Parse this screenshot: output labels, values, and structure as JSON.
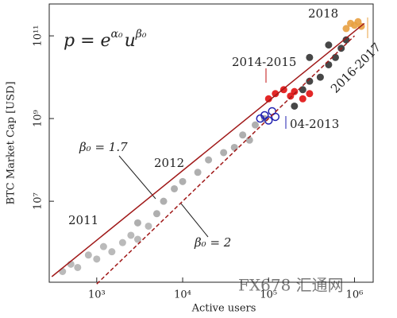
{
  "chart_data": {
    "type": "scatter",
    "log_x": true,
    "log_y": true,
    "x_label": "Active users",
    "y_label": "BTC Market Cap [USD]",
    "formula": {
      "base": "p = e",
      "exp1": "α₀",
      "mid": "u",
      "exp2": "β₀"
    },
    "xlim": [
      280,
      1650000
    ],
    "ylim": [
      110000,
      590000000000
    ],
    "xticks": [
      {
        "value": 1000,
        "label": "10³"
      },
      {
        "value": 10000,
        "label": "10⁴"
      },
      {
        "value": 100000,
        "label": "10⁵"
      },
      {
        "value": 1000000,
        "label": "10⁶"
      }
    ],
    "yticks": [
      {
        "value": 10000000,
        "label": "10⁷"
      },
      {
        "value": 1000000000,
        "label": "10⁹"
      },
      {
        "value": 100000000000,
        "label": "10¹¹"
      }
    ],
    "series": [
      {
        "name": "2011",
        "color": "#b3b3b3",
        "marker": "filled",
        "x": [
          400,
          500,
          600,
          800,
          1000,
          1200,
          1500,
          2000,
          2500,
          3000,
          4000
        ],
        "y": [
          200000,
          300000,
          250000,
          500000,
          400000,
          800000,
          600000,
          1000000,
          1500000,
          1200000,
          2500000
        ]
      },
      {
        "name": "2012",
        "color": "#a6a6a6",
        "marker": "filled",
        "x": [
          3000,
          5000,
          6000,
          8000,
          10000,
          15000,
          20000,
          30000,
          40000,
          50000,
          60000,
          70000,
          90000
        ],
        "y": [
          3000000,
          5000000,
          10000000,
          20000000,
          30000000,
          50000000,
          100000000,
          150000000,
          200000000,
          400000000,
          300000000,
          700000000,
          1000000000
        ]
      },
      {
        "name": "04-2013",
        "color": "#2020b0",
        "marker": "open",
        "x": [
          80000,
          90000,
          100000,
          110000,
          120000
        ],
        "y": [
          1000000000,
          1200000000,
          900000000,
          1500000000,
          1100000000
        ]
      },
      {
        "name": "2014-2015",
        "color": "#e01010",
        "marker": "filled",
        "x": [
          100000,
          120000,
          150000,
          180000,
          200000,
          250000,
          300000
        ],
        "y": [
          3000000000,
          4000000000,
          5000000000,
          3500000000,
          4500000000,
          3000000000,
          4000000000
        ]
      },
      {
        "name": "2016-2017",
        "color": "#333333",
        "marker": "filled",
        "x": [
          200000,
          250000,
          300000,
          400000,
          500000,
          600000,
          700000,
          800000,
          300000,
          500000
        ],
        "y": [
          2000000000,
          5000000000,
          8000000000,
          10000000000,
          20000000000,
          30000000000,
          50000000000,
          80000000000,
          30000000000,
          60000000000
        ]
      },
      {
        "name": "2018",
        "color": "#e8a040",
        "marker": "filled",
        "x": [
          800000,
          900000,
          1000000,
          1100000,
          1200000
        ],
        "y": [
          150000000000,
          200000000000,
          180000000000,
          220000000000,
          170000000000
        ]
      }
    ],
    "fits": [
      {
        "name": "β₀ = 1.7",
        "color": "#a01818",
        "dash": false,
        "x": [
          300,
          1300000
        ],
        "y": [
          150000,
          200000000000
        ]
      },
      {
        "name": "β₀ = 2",
        "color": "#a01818",
        "dash": true,
        "x": [
          1000,
          1000000
        ],
        "y": [
          100000,
          100000000000
        ]
      }
    ],
    "watermark": "FX678 汇通网"
  }
}
